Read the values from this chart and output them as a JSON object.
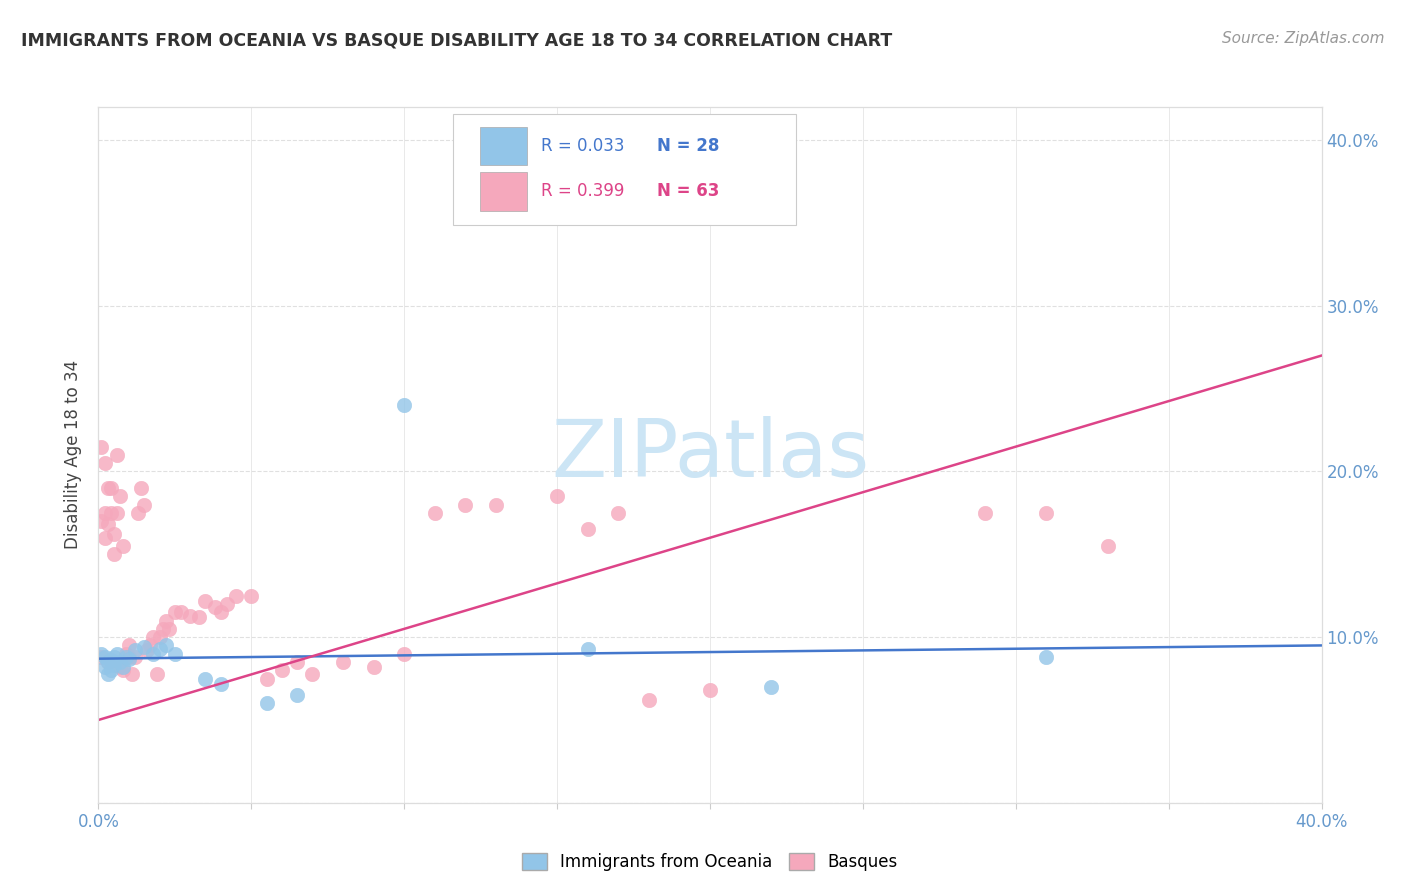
{
  "title": "IMMIGRANTS FROM OCEANIA VS BASQUE DISABILITY AGE 18 TO 34 CORRELATION CHART",
  "source": "Source: ZipAtlas.com",
  "ylabel": "Disability Age 18 to 34",
  "xlim": [
    0.0,
    0.4
  ],
  "ylim": [
    0.0,
    0.42
  ],
  "blue_R": 0.033,
  "blue_N": 28,
  "pink_R": 0.399,
  "pink_N": 63,
  "blue_color": "#92c5e8",
  "pink_color": "#f5a8bc",
  "blue_line_color": "#4477cc",
  "pink_line_color": "#dd4488",
  "tick_color": "#6699cc",
  "watermark_color": "#cce5f5",
  "blue_scatter_x": [
    0.001,
    0.002,
    0.002,
    0.003,
    0.003,
    0.004,
    0.004,
    0.005,
    0.005,
    0.006,
    0.007,
    0.008,
    0.009,
    0.01,
    0.012,
    0.015,
    0.018,
    0.02,
    0.022,
    0.025,
    0.035,
    0.04,
    0.055,
    0.065,
    0.1,
    0.16,
    0.22,
    0.31
  ],
  "blue_scatter_y": [
    0.09,
    0.082,
    0.088,
    0.078,
    0.085,
    0.08,
    0.086,
    0.083,
    0.088,
    0.09,
    0.085,
    0.082,
    0.088,
    0.087,
    0.092,
    0.094,
    0.09,
    0.093,
    0.095,
    0.09,
    0.075,
    0.072,
    0.06,
    0.065,
    0.24,
    0.093,
    0.07,
    0.088
  ],
  "pink_scatter_x": [
    0.001,
    0.001,
    0.001,
    0.002,
    0.002,
    0.002,
    0.003,
    0.003,
    0.003,
    0.004,
    0.004,
    0.005,
    0.005,
    0.006,
    0.006,
    0.007,
    0.007,
    0.008,
    0.008,
    0.009,
    0.01,
    0.01,
    0.011,
    0.012,
    0.013,
    0.014,
    0.015,
    0.016,
    0.017,
    0.018,
    0.019,
    0.02,
    0.021,
    0.022,
    0.023,
    0.025,
    0.027,
    0.03,
    0.033,
    0.035,
    0.038,
    0.04,
    0.042,
    0.045,
    0.05,
    0.055,
    0.06,
    0.065,
    0.07,
    0.08,
    0.09,
    0.1,
    0.11,
    0.12,
    0.13,
    0.15,
    0.16,
    0.17,
    0.18,
    0.2,
    0.29,
    0.31,
    0.33
  ],
  "pink_scatter_y": [
    0.088,
    0.17,
    0.215,
    0.175,
    0.205,
    0.16,
    0.168,
    0.19,
    0.085,
    0.175,
    0.19,
    0.15,
    0.162,
    0.21,
    0.175,
    0.185,
    0.082,
    0.08,
    0.155,
    0.09,
    0.088,
    0.095,
    0.078,
    0.088,
    0.175,
    0.19,
    0.18,
    0.092,
    0.095,
    0.1,
    0.078,
    0.1,
    0.105,
    0.11,
    0.105,
    0.115,
    0.115,
    0.113,
    0.112,
    0.122,
    0.118,
    0.115,
    0.12,
    0.125,
    0.125,
    0.075,
    0.08,
    0.085,
    0.078,
    0.085,
    0.082,
    0.09,
    0.175,
    0.18,
    0.18,
    0.185,
    0.165,
    0.175,
    0.062,
    0.068,
    0.175,
    0.175,
    0.155
  ],
  "blue_line_x": [
    0.0,
    0.4
  ],
  "blue_line_y": [
    0.087,
    0.095
  ],
  "pink_line_x": [
    0.0,
    0.4
  ],
  "pink_line_y": [
    0.05,
    0.27
  ],
  "watermark": "ZIPatlas",
  "background_color": "#ffffff",
  "grid_color": "#e0e0e0"
}
